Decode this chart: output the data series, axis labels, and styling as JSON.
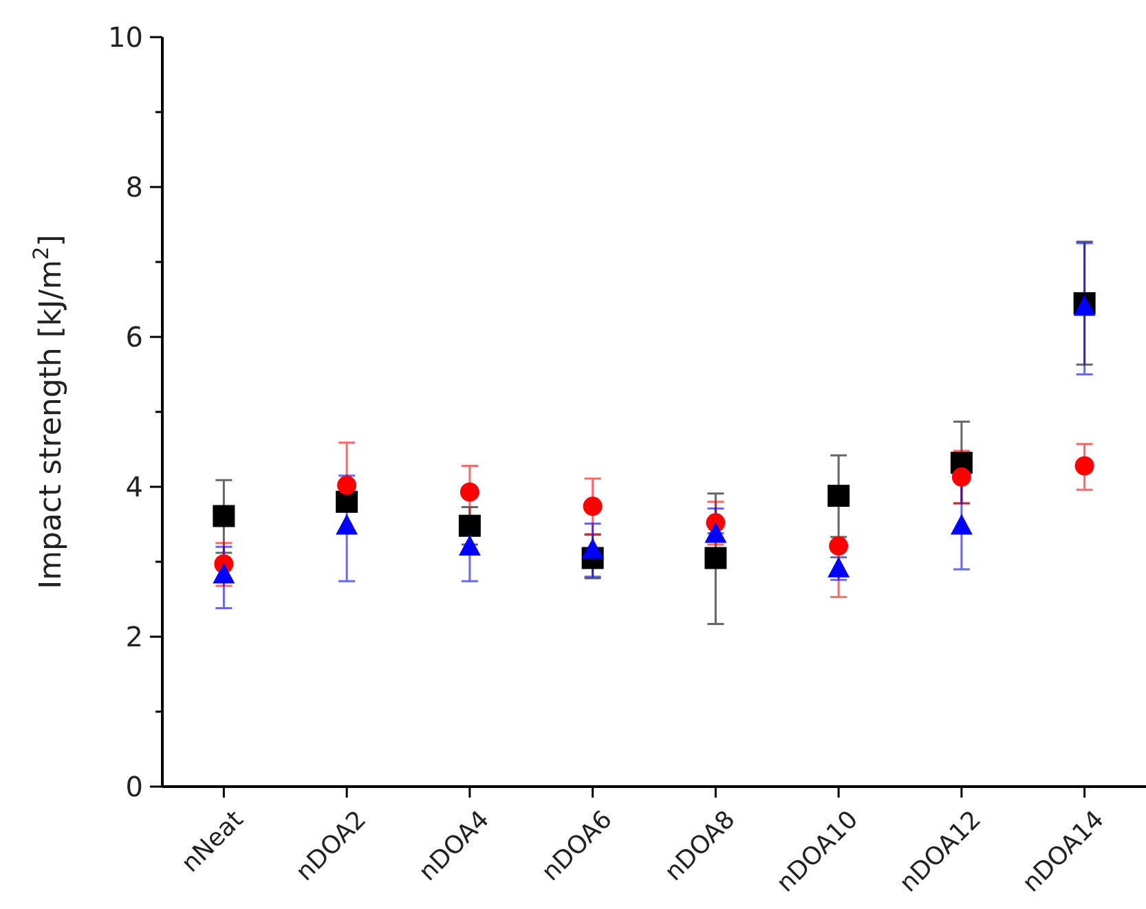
{
  "chart_data": {
    "type": "scatter",
    "ylabel": "Impact strength [kJ/m$^{2}$]",
    "categories": [
      "nNeat",
      "nDOA2",
      "nDOA4",
      "nDOA6",
      "nDOA8",
      "nDOA10",
      "nDOA12",
      "nDOA14"
    ],
    "ylim": [
      0,
      10
    ],
    "yticks": [
      0,
      {
        "value": 1,
        "label": null
      },
      2,
      {
        "value": 3,
        "label": null
      },
      4,
      {
        "value": 5,
        "label": null
      },
      6,
      {
        "value": 7,
        "label": null
      },
      8,
      {
        "value": 9,
        "label": null
      },
      10
    ],
    "grid": false,
    "legend": false,
    "series": [
      {
        "color": "#000000",
        "marker": "square",
        "values": [
          3.61,
          3.8,
          3.48,
          3.05,
          3.05,
          3.88,
          4.32,
          6.45
        ],
        "errors": [
          [
            3.12,
            4.09
          ],
          null,
          [
            3.23,
            3.73
          ],
          [
            2.78,
            3.36
          ],
          [
            2.17,
            3.91
          ],
          [
            3.33,
            4.42
          ],
          [
            3.78,
            4.87
          ],
          [
            5.63,
            7.27
          ]
        ]
      },
      {
        "color": "#ff0000",
        "marker": "circle",
        "values": [
          2.97,
          4.02,
          3.93,
          3.74,
          3.52,
          3.21,
          4.13,
          4.28
        ],
        "errors": [
          [
            2.68,
            3.25
          ],
          [
            4.02,
            4.59
          ],
          [
            3.58,
            4.28
          ],
          [
            3.37,
            4.11
          ],
          [
            3.23,
            3.8
          ],
          [
            2.53,
            3.21
          ],
          [
            3.78,
            4.48
          ],
          [
            3.96,
            4.57
          ]
        ]
      },
      {
        "color": "#0000ff",
        "marker": "triangle",
        "values": [
          2.84,
          3.49,
          3.21,
          3.17,
          3.38,
          2.92,
          3.49,
          6.41
        ],
        "errors": [
          [
            2.38,
            3.2
          ],
          [
            2.74,
            4.15
          ],
          [
            2.74,
            3.58
          ],
          [
            2.8,
            3.51
          ],
          [
            3.38,
            3.71
          ],
          [
            2.76,
            3.06
          ],
          [
            2.9,
            4.07
          ],
          [
            5.5,
            7.25
          ]
        ]
      }
    ]
  }
}
